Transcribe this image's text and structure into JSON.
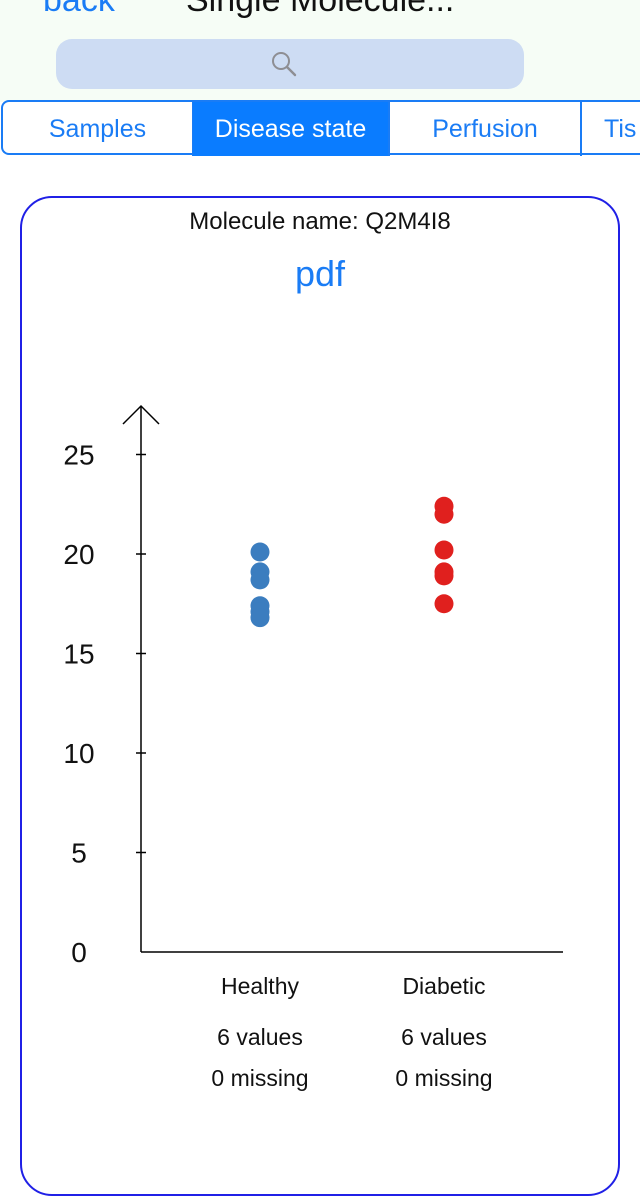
{
  "nav": {
    "back_label": "back",
    "title": "Single Molecule..."
  },
  "search": {
    "icon": "search-icon"
  },
  "tabs": [
    {
      "label": "Samples",
      "active": false
    },
    {
      "label": "Disease state",
      "active": true
    },
    {
      "label": "Perfusion",
      "active": false
    },
    {
      "label": "Tis",
      "active": false
    }
  ],
  "card": {
    "molecule_label": "Molecule name: Q2M4I8",
    "pdf_label": "pdf"
  },
  "colors": {
    "accent": "#1a7cf5",
    "tab_active_bg": "#0a7cff",
    "card_border": "#2020e6",
    "healthy": "#3b7dbf",
    "diabetic": "#e0201e"
  },
  "chart_data": {
    "type": "scatter",
    "categories": [
      "Healthy",
      "Diabetic"
    ],
    "ylim": [
      0,
      27
    ],
    "y_ticks": [
      0,
      5,
      10,
      15,
      20,
      25
    ],
    "y_tick_labels": [
      "0",
      "5",
      "10",
      "15",
      "20",
      "25"
    ],
    "series": [
      {
        "category": "Healthy",
        "color": "#3b7dbf",
        "values": [
          20.1,
          19.1,
          18.7,
          17.4,
          17.1,
          16.8
        ],
        "count_label": "6 values",
        "missing_label": "0 missing"
      },
      {
        "category": "Diabetic",
        "color": "#e0201e",
        "values": [
          22.4,
          22.0,
          20.2,
          19.1,
          18.9,
          17.5
        ],
        "count_label": "6 values",
        "missing_label": "0 missing"
      }
    ]
  }
}
